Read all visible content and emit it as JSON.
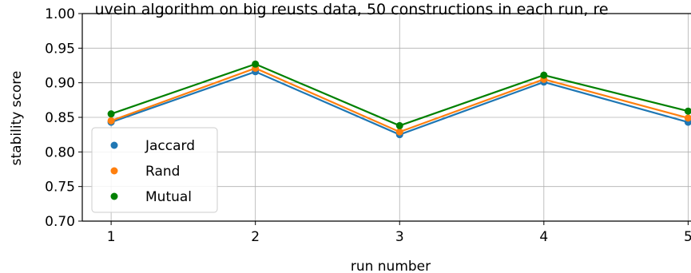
{
  "chart_data": {
    "type": "line",
    "title": "uvein algorithm on big reusts data, 50 constructions in each run, re",
    "xlabel": "run number",
    "ylabel": "stability score",
    "categories": [
      "1",
      "2",
      "3",
      "4",
      "5"
    ],
    "x": [
      1,
      2,
      3,
      4,
      5
    ],
    "yticks": [
      "0.70",
      "0.75",
      "0.80",
      "0.85",
      "0.90",
      "0.95",
      "1.00"
    ],
    "ylim": [
      0.7,
      1.0
    ],
    "xlim": [
      0.8,
      5.02
    ],
    "grid": true,
    "legend_position": "lower-left",
    "series": [
      {
        "name": "Jaccard",
        "color": "#1f77b4",
        "values": [
          0.843,
          0.916,
          0.825,
          0.901,
          0.843
        ]
      },
      {
        "name": "Rand",
        "color": "#ff7f0e",
        "values": [
          0.845,
          0.921,
          0.829,
          0.905,
          0.849
        ]
      },
      {
        "name": "Mutual",
        "color": "#008000",
        "values": [
          0.855,
          0.927,
          0.838,
          0.911,
          0.859
        ]
      }
    ]
  }
}
